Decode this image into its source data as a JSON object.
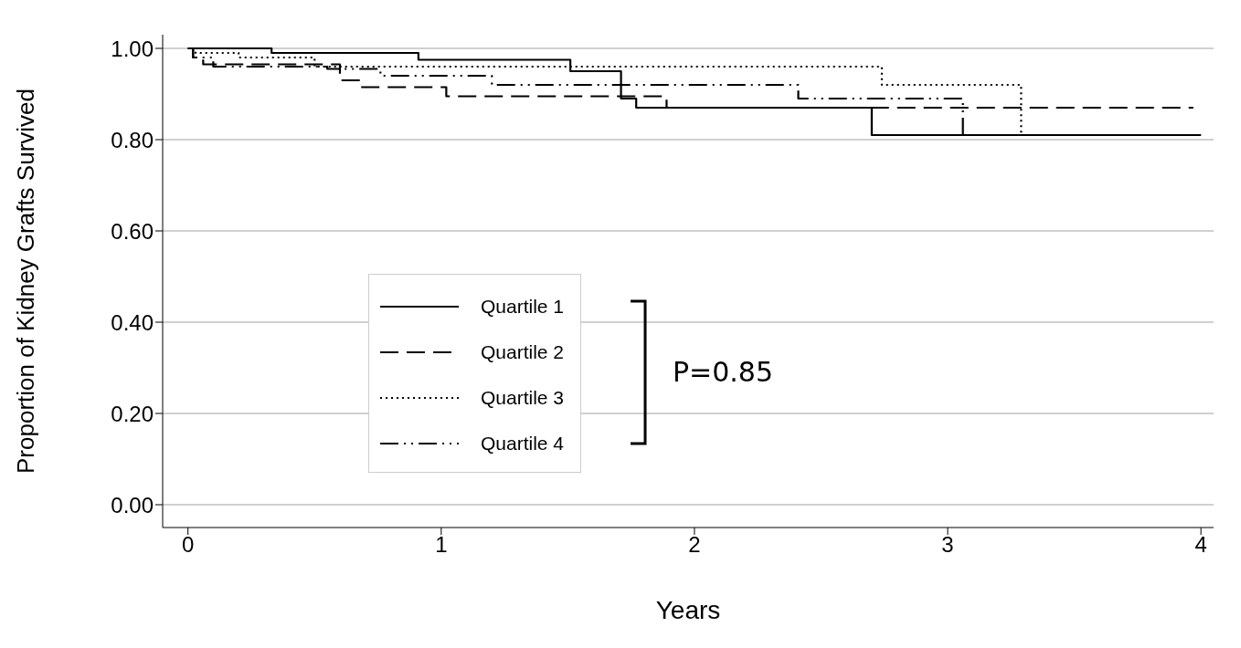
{
  "chart_data": {
    "type": "step",
    "xlabel": "Years",
    "ylabel": "Proportion of Kidney Grafts Survived",
    "xlim": [
      -0.1,
      4.05
    ],
    "ylim": [
      -0.05,
      1.03
    ],
    "xticks": [
      0,
      1,
      2,
      3,
      4
    ],
    "yticks": [
      {
        "value": 0,
        "label": "0.00"
      },
      {
        "value": 0.2,
        "label": "0.20"
      },
      {
        "value": 0.4,
        "label": "0.40"
      },
      {
        "value": 0.6,
        "label": "0.60"
      },
      {
        "value": 0.8,
        "label": "0.80"
      },
      {
        "value": 1,
        "label": "1.00"
      }
    ],
    "grid": "y",
    "legend": "bottom left",
    "marker": "none",
    "series": [
      {
        "name": "Quartile 1",
        "color": "#000000",
        "line_style": "solid",
        "x": [
          0,
          0.33,
          0.91,
          1.51,
          1.71,
          1.77,
          2.7,
          4.0
        ],
        "values": [
          1.0,
          0.99,
          0.975,
          0.95,
          0.89,
          0.87,
          0.81,
          0.81
        ]
      },
      {
        "name": "Quartile 2",
        "color": "#000000",
        "line_style": "dashed",
        "x": [
          0,
          0.02,
          0.06,
          0.6,
          0.68,
          1.02,
          1.89,
          3.97
        ],
        "values": [
          1.0,
          0.98,
          0.965,
          0.93,
          0.915,
          0.895,
          0.87,
          0.87
        ]
      },
      {
        "name": "Quartile 3",
        "color": "#000000",
        "line_style": "dotted",
        "x": [
          0,
          0.03,
          0.2,
          0.5,
          2.74,
          3.29,
          4.0
        ],
        "values": [
          1.0,
          0.99,
          0.98,
          0.96,
          0.92,
          0.81,
          0.81
        ]
      },
      {
        "name": "Quartile 4",
        "color": "#000000",
        "line_style": "dashdot",
        "x": [
          0,
          0.02,
          0.1,
          0.55,
          0.76,
          1.2,
          2.41,
          3.06,
          4.0
        ],
        "values": [
          1.0,
          0.98,
          0.96,
          0.955,
          0.94,
          0.92,
          0.89,
          0.81,
          0.81
        ]
      }
    ],
    "annotations": [
      "P=0.85"
    ]
  }
}
